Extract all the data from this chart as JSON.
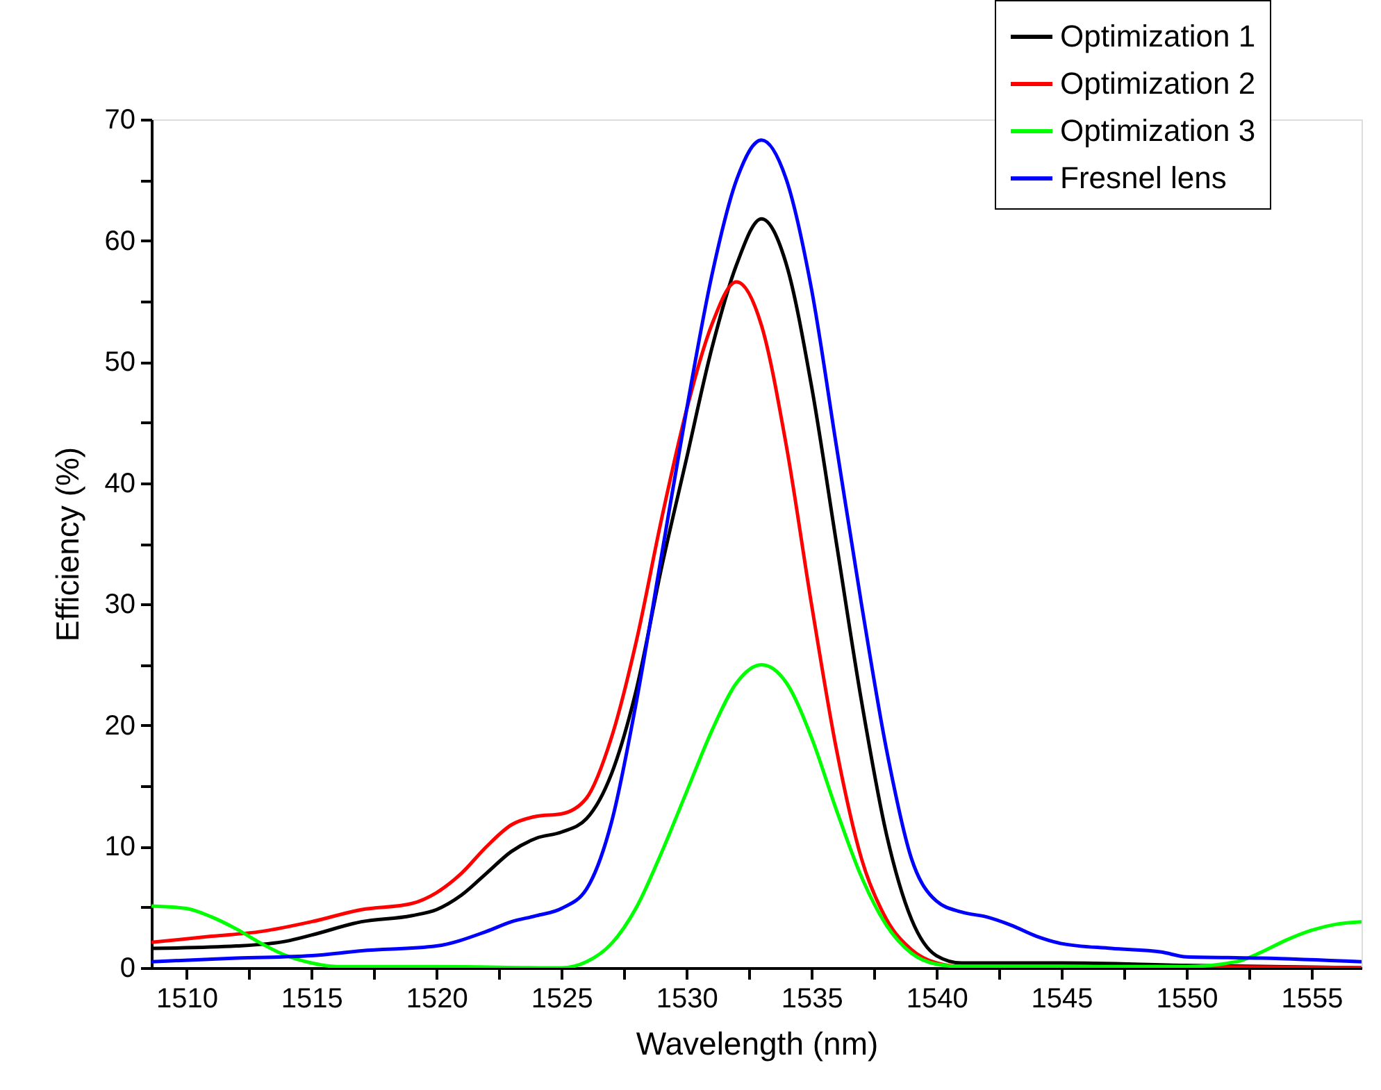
{
  "chart_data": {
    "type": "line",
    "xlabel": "Wavelength (nm)",
    "ylabel": "Efficiency (%)",
    "xlim": [
      1508.6,
      1557
    ],
    "ylim": [
      0,
      70
    ],
    "xticks": [
      1510,
      {
        "value": 1512.5,
        "label": null
      },
      1515,
      {
        "value": 1517.5,
        "label": null
      },
      1520,
      {
        "value": 1522.5,
        "label": null
      },
      1525,
      {
        "value": 1527.5,
        "label": null
      },
      1530,
      {
        "value": 1532.5,
        "label": null
      },
      1535,
      {
        "value": 1537.5,
        "label": null
      },
      1540,
      {
        "value": 1542.5,
        "label": null
      },
      1545,
      {
        "value": 1547.5,
        "label": null
      },
      1550,
      {
        "value": 1552.5,
        "label": null
      },
      1555
    ],
    "yticks": [
      0,
      {
        "value": 5,
        "label": null
      },
      10,
      {
        "value": 15,
        "label": null
      },
      20,
      {
        "value": 25,
        "label": null
      },
      30,
      {
        "value": 35,
        "label": null
      },
      40,
      {
        "value": 45,
        "label": null
      },
      50,
      {
        "value": 55,
        "label": null
      },
      60,
      {
        "value": 65,
        "label": null
      },
      70
    ],
    "grid": false,
    "legend": "top right",
    "series": [
      {
        "name": "Optimization 1",
        "color": "#000000",
        "x": [
          1508.6,
          1512,
          1514,
          1515,
          1517,
          1519,
          1520,
          1521,
          1522,
          1523,
          1524,
          1525,
          1526,
          1527,
          1528,
          1529,
          1530,
          1531,
          1532,
          1533,
          1534,
          1535,
          1536,
          1537,
          1538,
          1539,
          1540,
          1541,
          1545,
          1550,
          1557
        ],
        "values": [
          1.6,
          1.8,
          2.2,
          2.7,
          3.8,
          4.3,
          4.8,
          6,
          7.8,
          9.6,
          10.7,
          11.2,
          12.3,
          16,
          23,
          33,
          42,
          51,
          58,
          61.8,
          58,
          48,
          35,
          22,
          11,
          4,
          1,
          0.4,
          0.4,
          0.2,
          0
        ]
      },
      {
        "name": "Optimization 2",
        "color": "#ff0000",
        "x": [
          1508.6,
          1511,
          1513,
          1515,
          1517,
          1519,
          1520,
          1521,
          1522,
          1523,
          1524,
          1525,
          1526,
          1527,
          1528,
          1529,
          1530,
          1531,
          1532,
          1533,
          1534,
          1535,
          1536,
          1537,
          1538,
          1539,
          1540,
          1541,
          1550,
          1557
        ],
        "values": [
          2.1,
          2.6,
          3,
          3.8,
          4.8,
          5.3,
          6.2,
          7.8,
          10,
          11.8,
          12.5,
          12.7,
          14,
          19,
          27,
          37,
          46,
          53,
          56.6,
          53,
          43,
          30,
          18,
          9,
          4,
          1.5,
          0.4,
          0.1,
          0.1,
          0
        ]
      },
      {
        "name": "Optimization 3",
        "color": "#00ff00",
        "x": [
          1508.6,
          1510,
          1511,
          1512,
          1513,
          1514,
          1515,
          1516,
          1520,
          1525,
          1526,
          1527,
          1528,
          1529,
          1530,
          1531,
          1532,
          1533,
          1534,
          1535,
          1536,
          1537,
          1538,
          1539,
          1540,
          1541,
          1550,
          1552,
          1553,
          1554,
          1555,
          1556,
          1557
        ],
        "values": [
          5.1,
          4.9,
          4.2,
          3.2,
          2,
          1,
          0.4,
          0.1,
          0.1,
          0,
          0.5,
          2,
          5,
          9.5,
          14.5,
          19.5,
          23.5,
          25,
          23.5,
          19,
          13,
          7.5,
          3.5,
          1.2,
          0.3,
          0.1,
          0.1,
          0.5,
          1.3,
          2.3,
          3.1,
          3.6,
          3.8
        ]
      },
      {
        "name": "Fresnel lens",
        "color": "#0000ff",
        "x": [
          1508.6,
          1512,
          1515,
          1517,
          1520,
          1522,
          1523,
          1524,
          1525,
          1526,
          1527,
          1528,
          1529,
          1530,
          1531,
          1532,
          1533,
          1534,
          1535,
          1536,
          1537,
          1538,
          1539,
          1540,
          1541,
          1542,
          1543,
          1544,
          1545,
          1547,
          1549,
          1550,
          1553,
          1557
        ],
        "values": [
          0.5,
          0.8,
          1,
          1.4,
          1.8,
          3,
          3.8,
          4.3,
          4.9,
          6.5,
          12,
          22,
          34,
          46,
          57,
          65,
          68.3,
          65,
          56,
          43,
          30,
          18,
          9,
          5.5,
          4.6,
          4.2,
          3.5,
          2.6,
          2,
          1.6,
          1.3,
          0.9,
          0.8,
          0.5
        ]
      }
    ]
  }
}
